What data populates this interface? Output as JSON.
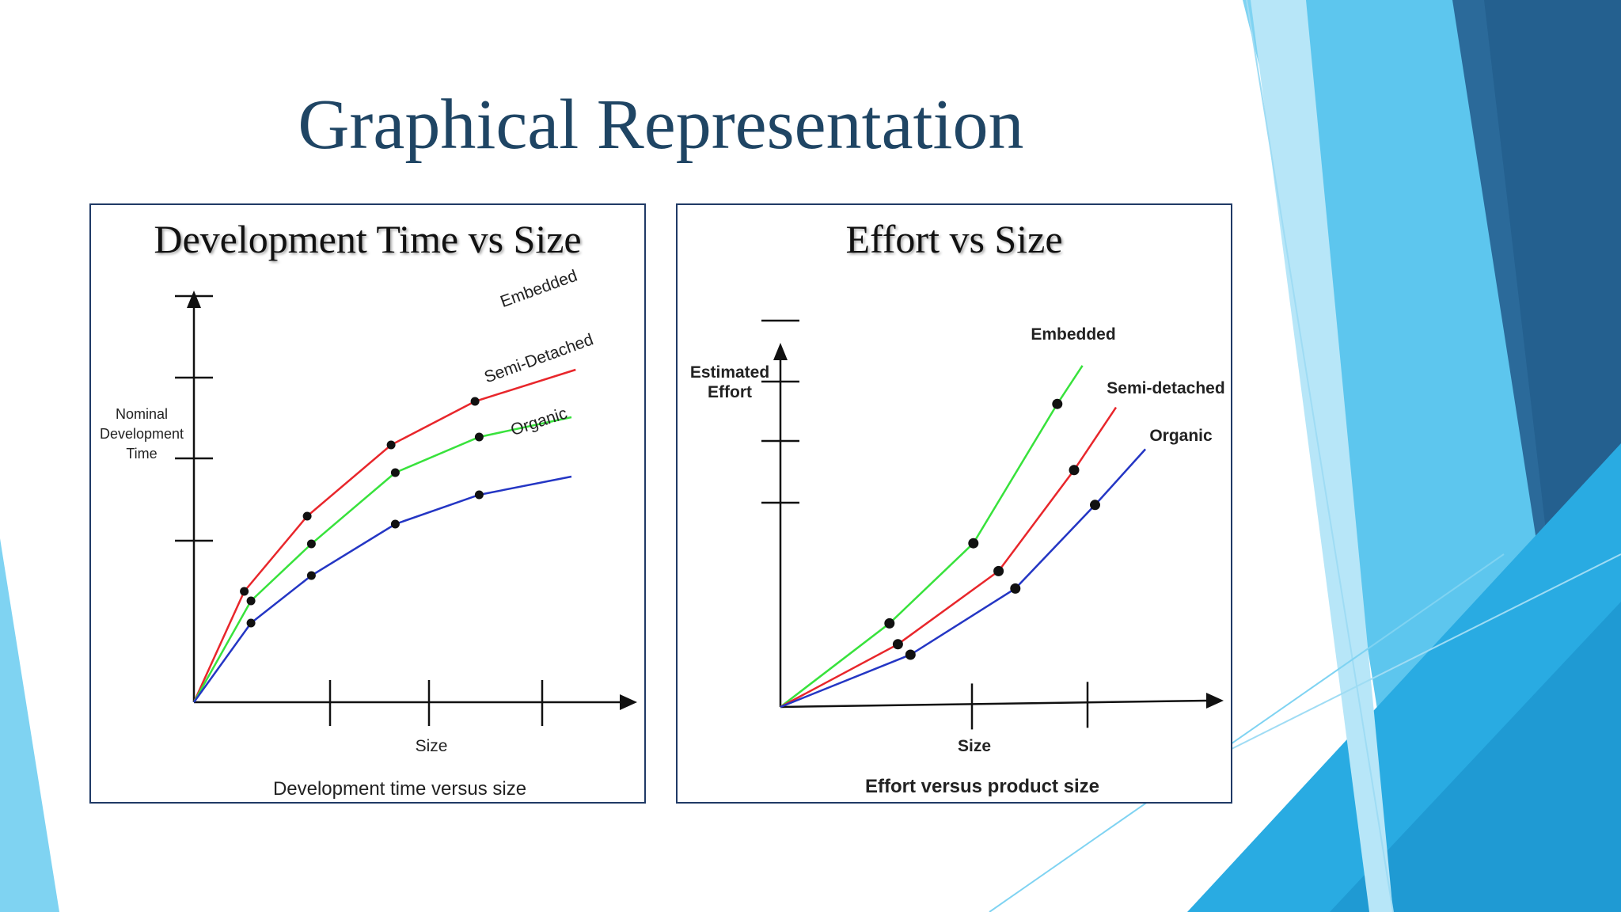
{
  "slide": {
    "title": "Graphical Representation",
    "colors": {
      "title": "#1f4564",
      "accent_light": "#7fd3f2",
      "accent_mid": "#2fb3e3",
      "accent_dark": "#2b6a9a",
      "panel_border": "#203a66"
    }
  },
  "chart_data": [
    {
      "type": "line",
      "title": "Development Time vs Size",
      "xlabel": "Size",
      "ylabel": "Nominal\nDevelopment\nTime",
      "caption": "Development time versus size",
      "series": [
        {
          "name": "Embedded",
          "color": "#e8262b",
          "points": [
            [
              0,
              0
            ],
            [
              0.6,
              1.4
            ],
            [
              1.35,
              2.35
            ],
            [
              2.35,
              3.25
            ],
            [
              3.35,
              3.8
            ],
            [
              4.55,
              4.2
            ]
          ]
        },
        {
          "name": "Semi-Detached",
          "color": "#38e23c",
          "points": [
            [
              0,
              0
            ],
            [
              0.68,
              1.28
            ],
            [
              1.4,
              2.0
            ],
            [
              2.4,
              2.9
            ],
            [
              3.4,
              3.35
            ],
            [
              4.5,
              3.6
            ]
          ]
        },
        {
          "name": "Organic",
          "color": "#2436c4",
          "points": [
            [
              0,
              0
            ],
            [
              0.68,
              1.0
            ],
            [
              1.4,
              1.6
            ],
            [
              2.4,
              2.25
            ],
            [
              3.4,
              2.62
            ],
            [
              4.5,
              2.85
            ]
          ]
        }
      ],
      "markers": {
        "Embedded": [
          1,
          2,
          3,
          4
        ],
        "Semi-Detached": [
          1,
          2,
          3,
          4
        ],
        "Organic": [
          1,
          2,
          3,
          4
        ]
      },
      "ylim": [
        0,
        5
      ],
      "xlim": [
        0,
        5
      ],
      "grid": false,
      "legend": "inline labels at line ends"
    },
    {
      "type": "line",
      "title": "Effort vs Size",
      "xlabel": "Size",
      "ylabel": "Estimated\nEffort",
      "caption": "Effort versus product size",
      "series": [
        {
          "name": "Embedded",
          "color": "#38e23c",
          "points": [
            [
              0,
              0
            ],
            [
              1.3,
              1.2
            ],
            [
              2.3,
              2.35
            ],
            [
              3.3,
              4.35
            ],
            [
              3.6,
              4.9
            ]
          ]
        },
        {
          "name": "Semi-detached",
          "color": "#e8262b",
          "points": [
            [
              0,
              0
            ],
            [
              1.4,
              0.9
            ],
            [
              2.6,
              1.95
            ],
            [
              3.5,
              3.4
            ],
            [
              4.0,
              4.3
            ]
          ]
        },
        {
          "name": "Organic",
          "color": "#2436c4",
          "points": [
            [
              0,
              0
            ],
            [
              1.55,
              0.75
            ],
            [
              2.8,
              1.7
            ],
            [
              3.75,
              2.9
            ],
            [
              4.35,
              3.7
            ]
          ]
        }
      ],
      "markers": {
        "Embedded": [
          1,
          2,
          3
        ],
        "Semi-detached": [
          1,
          2,
          3
        ],
        "Organic": [
          1,
          2,
          3
        ]
      },
      "ylim": [
        0,
        5
      ],
      "xlim": [
        0,
        5
      ],
      "grid": false,
      "legend": "inline labels at line ends"
    }
  ]
}
